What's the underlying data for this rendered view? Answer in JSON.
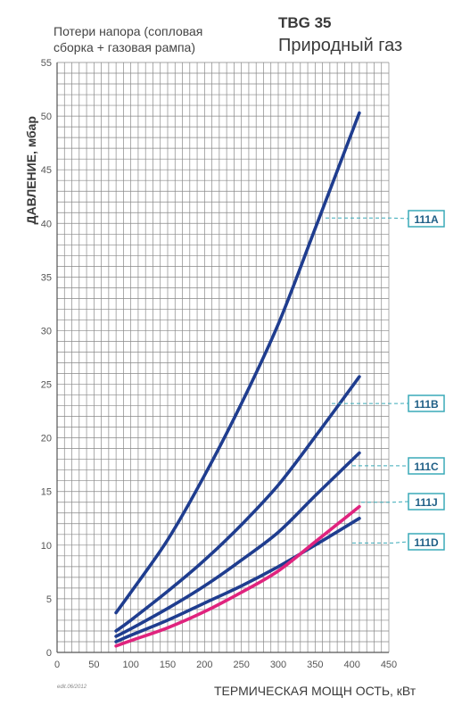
{
  "header": {
    "subtitle_line1": "Потери напора (сопловая",
    "subtitle_line2": "сборка + газовая рампа)",
    "model": "TBG 35",
    "fuel": "Природный газ"
  },
  "footer": {
    "edit_note": "edit.06/2012"
  },
  "colors": {
    "grid": "#888888",
    "blue": "#1f3d8f",
    "pink": "#e0237e",
    "callout": "#3aaab8"
  },
  "chart_data": {
    "type": "line",
    "xlabel": "ТЕРМИЧЕСКАЯ МОЩН ОСТЬ, кВт",
    "ylabel": "ДАВЛЕНИЕ, мбар",
    "xlim": [
      0,
      450
    ],
    "ylim": [
      0,
      55
    ],
    "xticks": [
      0,
      50,
      100,
      150,
      200,
      250,
      300,
      350,
      400,
      450
    ],
    "yticks": [
      0,
      5,
      10,
      15,
      20,
      25,
      30,
      35,
      40,
      45,
      50,
      55
    ],
    "grid": true,
    "series": [
      {
        "name": "111A",
        "color": "#1f3d8f",
        "x": [
          80,
          100,
          150,
          200,
          250,
          300,
          350,
          410
        ],
        "y": [
          3.7,
          5.6,
          10.5,
          16.5,
          23.2,
          30.6,
          39.5,
          50.3
        ]
      },
      {
        "name": "111B",
        "color": "#1f3d8f",
        "x": [
          80,
          100,
          150,
          200,
          250,
          300,
          350,
          410
        ],
        "y": [
          2.0,
          3.0,
          5.7,
          8.6,
          11.9,
          15.6,
          20.1,
          25.7
        ]
      },
      {
        "name": "111C",
        "color": "#1f3d8f",
        "x": [
          80,
          100,
          150,
          200,
          250,
          300,
          350,
          410
        ],
        "y": [
          1.5,
          2.2,
          4.1,
          6.2,
          8.6,
          11.2,
          14.6,
          18.6
        ]
      },
      {
        "name": "111D",
        "color": "#1f3d8f",
        "x": [
          80,
          100,
          150,
          200,
          250,
          300,
          350,
          410
        ],
        "y": [
          1.0,
          1.6,
          3.0,
          4.6,
          6.2,
          8.0,
          10.0,
          12.5
        ]
      },
      {
        "name": "111J",
        "color": "#e0237e",
        "x": [
          80,
          100,
          150,
          200,
          250,
          300,
          350,
          410
        ],
        "y": [
          0.6,
          1.1,
          2.3,
          3.8,
          5.6,
          7.6,
          10.3,
          13.6
        ]
      }
    ],
    "labels": [
      {
        "text": "111A",
        "at_y": 40.5
      },
      {
        "text": "111B",
        "at_y": 23.2
      },
      {
        "text": "111C",
        "at_y": 17.4
      },
      {
        "text": "111J",
        "at_y": 14.0
      },
      {
        "text": "111D",
        "at_y": 10.2
      }
    ]
  }
}
